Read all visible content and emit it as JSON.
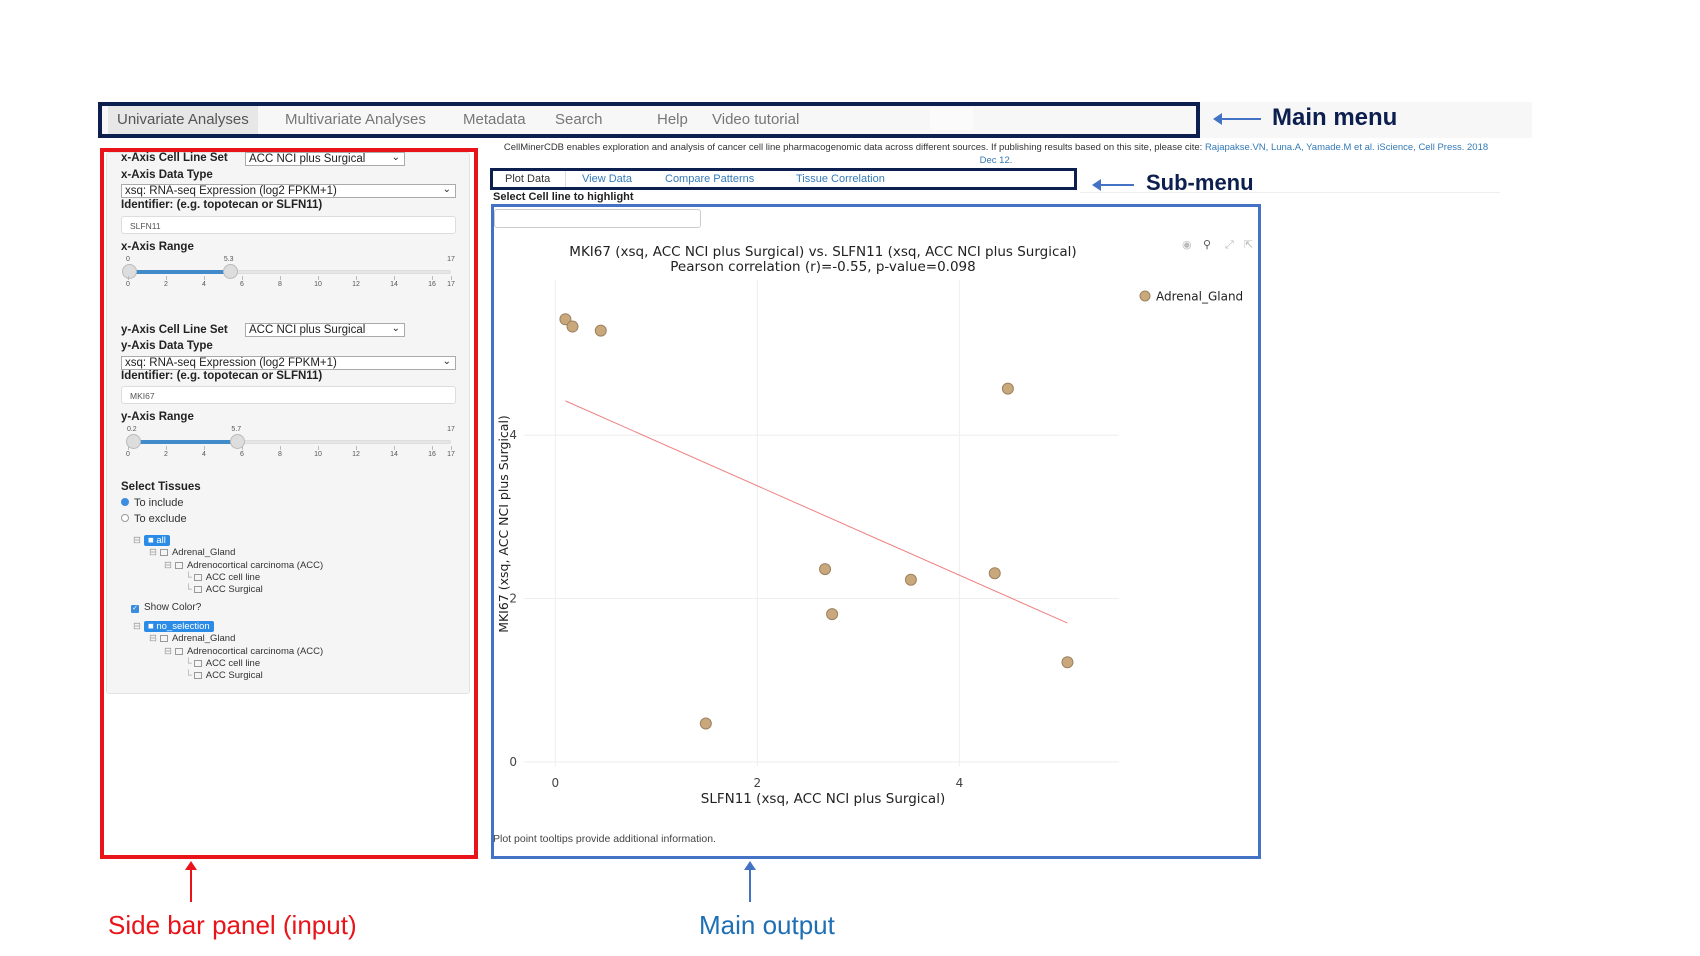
{
  "main_menu": {
    "items": [
      "Univariate Analyses",
      "Multivariate Analyses",
      "Metadata",
      "Search",
      "Help",
      "Video tutorial"
    ],
    "active": "Univariate Analyses"
  },
  "annotations": {
    "main_menu": "Main menu",
    "sub_menu": "Sub-menu",
    "sidebar": "Side bar panel (input)",
    "main_output": "Main output"
  },
  "citation": {
    "text": "CellMinerCDB enables exploration and analysis of cancer cell line pharmacogenomic data across different sources. If publishing results based on this site, please cite: ",
    "link": "Rajapakse.VN, Luna.A, Yamade.M et al. iScience, Cell Press. 2018 Dec 12."
  },
  "sidebar": {
    "x_cell_line_set_label": "x-Axis Cell Line Set",
    "x_cell_line_set": "ACC NCI plus Surgical",
    "x_data_type_label": "x-Axis Data Type",
    "x_data_type": "xsq: RNA-seq Expression (log2 FPKM+1)",
    "x_identifier_label": "Identifier: (e.g. topotecan or SLFN11)",
    "x_identifier": "SLFN11",
    "x_range_label": "x-Axis Range",
    "x_range": {
      "min": 0,
      "max": 17,
      "low": 0,
      "high": 5.3,
      "low_label": "0",
      "high_label": "5.3",
      "max_label": "17"
    },
    "y_cell_line_set_label": "y-Axis Cell Line Set",
    "y_cell_line_set": "ACC NCI plus Surgical",
    "y_data_type_label": "y-Axis Data Type",
    "y_data_type": "xsq: RNA-seq Expression (log2 FPKM+1)",
    "y_identifier_label": "Identifier: (e.g. topotecan or SLFN11)",
    "y_identifier": "MKI67",
    "y_range_label": "y-Axis Range",
    "y_range": {
      "min": 0,
      "max": 17,
      "low": 0.2,
      "high": 5.7,
      "low_label": "0.2",
      "high_label": "5.7",
      "max_label": "17"
    },
    "slider_ticks": [
      "0",
      "2",
      "4",
      "6",
      "8",
      "10",
      "12",
      "14",
      "16",
      "17"
    ],
    "select_tissues_label": "Select Tissues",
    "radio_include": "To include",
    "radio_exclude": "To exclude",
    "radio_selected": "To include",
    "tree1": [
      "all",
      "Adrenal_Gland",
      "Adrenocortical carcinoma (ACC)",
      "ACC cell line",
      "ACC Surgical"
    ],
    "show_color_label": "Show Color?",
    "show_color_checked": true,
    "tree2": [
      "no_selection",
      "Adrenal_Gland",
      "Adrenocortical carcinoma (ACC)",
      "ACC cell line",
      "ACC Surgical"
    ]
  },
  "sub_menu": {
    "tabs": [
      "Plot Data",
      "View Data",
      "Compare Patterns",
      "Tissue Correlation"
    ],
    "active": "Plot Data"
  },
  "main": {
    "highlight_label": "Select Cell line to highlight",
    "highlight_value": "",
    "footer_note": "Plot point tooltips provide additional information."
  },
  "chart_data": {
    "type": "scatter",
    "title": "MKI67 (xsq, ACC NCI plus Surgical) vs. SLFN11 (xsq, ACC NCI plus Surgical)",
    "subtitle": "Pearson correlation (r)=-0.55, p-value=0.098",
    "xlabel": "SLFN11 (xsq, ACC NCI plus Surgical)",
    "ylabel": "MKI67 (xsq, ACC NCI plus Surgical)",
    "xlim": [
      -0.31,
      5.58
    ],
    "ylim": [
      -0.05,
      5.9
    ],
    "xticks": [
      0,
      2,
      4
    ],
    "yticks": [
      0,
      2,
      4
    ],
    "grid": true,
    "legend_position": "top-right",
    "series": [
      {
        "name": "Adrenal_Gland",
        "color": "#c9a87c",
        "x": [
          0.1,
          0.17,
          0.45,
          4.48,
          2.67,
          3.52,
          4.35,
          2.74,
          5.07,
          1.49
        ],
        "y": [
          5.42,
          5.33,
          5.28,
          4.57,
          2.36,
          2.23,
          2.31,
          1.81,
          1.22,
          0.47
        ]
      }
    ],
    "trendline": {
      "color": "#f08080",
      "x": [
        0.1,
        5.07
      ],
      "y": [
        4.42,
        1.7
      ]
    }
  },
  "colors": {
    "main_menu_box": "#0d1f4f",
    "sidebar_box": "#e8141a",
    "main_output_box": "#4472c4",
    "sidebar_caption": "#e8141a",
    "main_caption": "#1f6fb4"
  }
}
